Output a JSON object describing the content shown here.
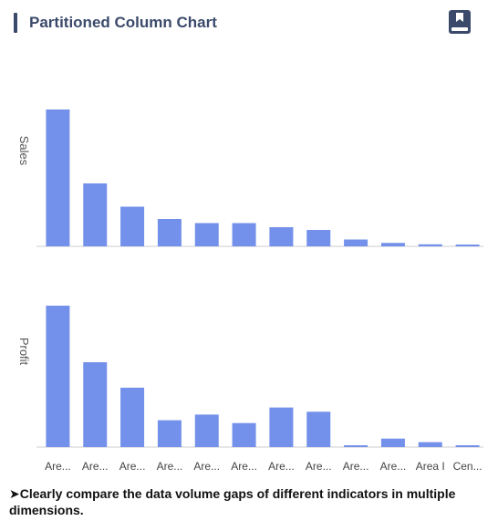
{
  "header": {
    "title": "Partitioned Column Chart",
    "icon": "book-icon"
  },
  "chart_data": {
    "type": "bar",
    "layout": "partitioned",
    "categories": [
      "Are...",
      "Are...",
      "Are...",
      "Are...",
      "Are...",
      "Are...",
      "Are...",
      "Are...",
      "Are...",
      "Are...",
      "Area I",
      "Cen..."
    ],
    "series": [
      {
        "name": "Sales",
        "values": [
          100,
          46,
          29,
          20,
          17,
          17,
          14,
          12,
          5,
          2.5,
          1.5,
          1
        ]
      },
      {
        "name": "Profit",
        "values": [
          100,
          60,
          42,
          19,
          23,
          17,
          28,
          25,
          0.5,
          6,
          3.5,
          0.5
        ]
      }
    ],
    "ylabels": [
      "Sales",
      "Profit"
    ],
    "bar_color": "#7391ea",
    "grid": false
  },
  "footer": {
    "text": "➤Clearly compare the data volume gaps of different indicators in multiple dimensions."
  }
}
